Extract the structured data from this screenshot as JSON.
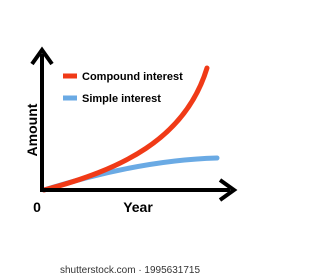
{
  "legend": {
    "items": [
      {
        "label": "Compound interest"
      },
      {
        "label": "Simple interest"
      }
    ]
  },
  "axes": {
    "y_label": "Amount",
    "x_label": "Year",
    "origin_label": "0"
  },
  "footer": {
    "text": "shutterstock.com · 1995631715"
  }
}
